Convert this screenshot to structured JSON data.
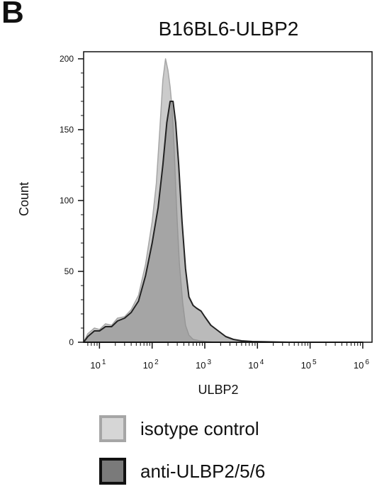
{
  "panel_label": "B",
  "chart_data": {
    "type": "area",
    "title": "B16BL6-ULBP2",
    "xlabel": "ULBP2",
    "ylabel": "Count",
    "x_scale": "log",
    "xlim": [
      5,
      1500000
    ],
    "ylim": [
      0,
      205
    ],
    "grid": false,
    "legend_position": "bottom",
    "y_ticks": [
      0,
      50,
      100,
      150,
      200
    ],
    "y_tick_labels": [
      "0",
      "50",
      "100",
      "150",
      "200"
    ],
    "x_ticks": [
      10,
      100,
      1000,
      10000,
      100000,
      1000000
    ],
    "x_tick_labels": [
      {
        "base": "10",
        "exp": "1"
      },
      {
        "base": "10",
        "exp": "2"
      },
      {
        "base": "10",
        "exp": "3"
      },
      {
        "base": "10",
        "exp": "4"
      },
      {
        "base": "10",
        "exp": "5"
      },
      {
        "base": "10",
        "exp": "6"
      }
    ],
    "series": [
      {
        "name": "isotype control",
        "fill": "#c8c8c8",
        "stroke": "#a6a6a6",
        "x": [
          5,
          6,
          8,
          10,
          13,
          17,
          22,
          30,
          40,
          55,
          75,
          100,
          120,
          140,
          160,
          180,
          200,
          220,
          240,
          260,
          280,
          300,
          330,
          380,
          430,
          500,
          600,
          800,
          1500
        ],
        "y": [
          0,
          6,
          10,
          9,
          13,
          12,
          17,
          18,
          23,
          33,
          55,
          85,
          112,
          150,
          185,
          200,
          192,
          180,
          165,
          140,
          110,
          85,
          55,
          28,
          12,
          5,
          2,
          1,
          0
        ]
      },
      {
        "name": "anti-ULBP2/5/6",
        "fill": "#8c8c8c",
        "stroke": "#222222",
        "x": [
          5,
          6,
          8,
          10,
          13,
          17,
          22,
          30,
          40,
          55,
          75,
          100,
          130,
          160,
          190,
          220,
          250,
          280,
          320,
          370,
          430,
          500,
          600,
          700,
          850,
          1000,
          1300,
          1800,
          2500,
          3500,
          5000,
          8000,
          15000,
          40000,
          100000,
          300000,
          1000000
        ],
        "y": [
          0,
          4,
          8,
          8,
          11,
          11,
          15,
          17,
          21,
          29,
          47,
          70,
          95,
          125,
          155,
          170,
          170,
          155,
          125,
          85,
          52,
          32,
          26,
          24,
          22,
          18,
          12,
          8,
          4,
          2,
          1,
          0.5,
          0.3,
          0,
          0,
          0,
          0
        ]
      }
    ]
  }
}
